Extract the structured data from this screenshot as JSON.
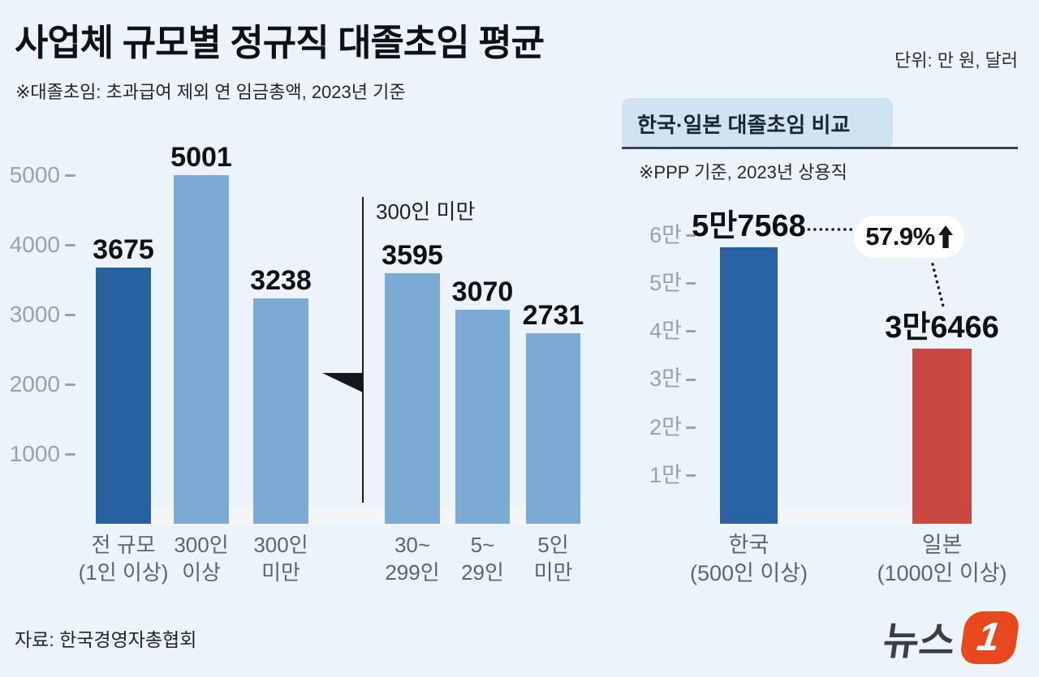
{
  "header": {
    "title": "사업체 규모별 정규직 대졸초임 평균",
    "subtitle": "※대졸초임: 초과급여 제외 연 임금총액, 2023년 기준",
    "unit_label": "단위: 만 원, 달러"
  },
  "chart_data": [
    {
      "id": "salary-by-company-size",
      "type": "bar",
      "categories": [
        [
          "전 규모",
          "(1인 이상)"
        ],
        [
          "300인",
          "이상"
        ],
        [
          "300인",
          "미만"
        ],
        [
          "30~",
          "299인"
        ],
        [
          "5~",
          "29인"
        ],
        [
          "5인",
          "미만"
        ]
      ],
      "values": [
        3675,
        5001,
        3238,
        3595,
        3070,
        2731
      ],
      "value_labels": [
        "3675",
        "5001",
        "3238",
        "3595",
        "3070",
        "2731"
      ],
      "colors": [
        "#27619f",
        "#7babd4",
        "#7babd4",
        "#7babd4",
        "#7babd4",
        "#7babd4"
      ],
      "yticks": [
        {
          "label": "1000",
          "value": 1000
        },
        {
          "label": "2000",
          "value": 2000
        },
        {
          "label": "3000",
          "value": 3000
        },
        {
          "label": "4000",
          "value": 4000
        },
        {
          "label": "5000",
          "value": 5000
        }
      ],
      "ylim": [
        0,
        5400
      ],
      "grid": false,
      "annotation": "300인 미만"
    },
    {
      "id": "korea-japan-comparison",
      "type": "bar",
      "title": "한국·일본 대졸초임 비교",
      "note": "※PPP 기준, 2023년 상용직",
      "categories": [
        [
          "한국",
          "(500인 이상)"
        ],
        [
          "일본",
          "(1000인 이상)"
        ]
      ],
      "values": [
        57568,
        36466
      ],
      "value_labels": [
        "5만7568",
        "3만6466"
      ],
      "colors": [
        "#2a63a4",
        "#ca4842"
      ],
      "yticks": [
        {
          "label": "1만",
          "value": 10000
        },
        {
          "label": "2만",
          "value": 20000
        },
        {
          "label": "3만",
          "value": 30000
        },
        {
          "label": "4만",
          "value": 40000
        },
        {
          "label": "5만",
          "value": 50000
        },
        {
          "label": "6만",
          "value": 60000
        }
      ],
      "ylim": [
        0,
        64000
      ],
      "grid": false,
      "diff_badge": {
        "text": "57.9%",
        "direction": "up"
      }
    }
  ],
  "footer": {
    "source": "자료: 한국경영자총협회",
    "logo": {
      "text": "뉴스",
      "number": "1",
      "color": "#e8481e"
    }
  },
  "colors": {
    "background": "#ecf3fa",
    "dark_blue": "#27619f",
    "light_blue": "#7babd4",
    "red": "#ca4842",
    "panel_blue": "#cfe3f1",
    "tick_gray": "#99a0aa",
    "axis_label_gray": "#5d6470"
  }
}
